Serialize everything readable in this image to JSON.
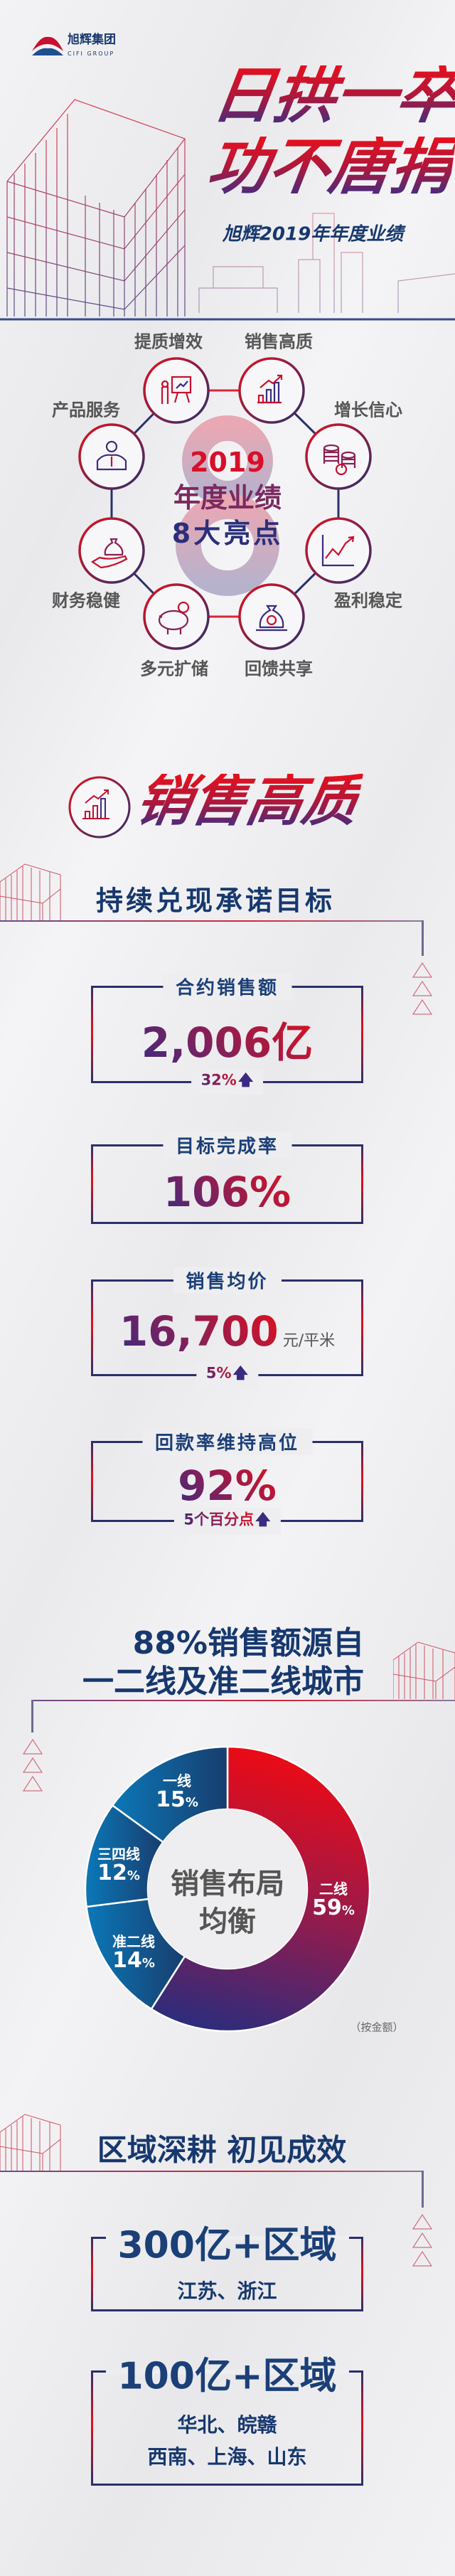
{
  "header": {
    "logo_cn": "旭辉集团",
    "logo_en": "CIFI GROUP",
    "title_line1": "日拱一卒",
    "title_line2": "功不唐捐",
    "subtitle": "旭辉2019年年度业绩"
  },
  "highlights": {
    "watermark": "8",
    "center_year": "2019",
    "center_line2": "年度业绩",
    "center_line3": "8大亮点",
    "items": [
      {
        "label": "提质增效",
        "icon": "presentation-chart-icon"
      },
      {
        "label": "销售高质",
        "icon": "bar-chart-growth-icon"
      },
      {
        "label": "增长信心",
        "icon": "coin-stacks-icon"
      },
      {
        "label": "盈利稳定",
        "icon": "line-chart-up-icon"
      },
      {
        "label": "回馈共享",
        "icon": "money-bag-icon"
      },
      {
        "label": "多元扩储",
        "icon": "piggy-bank-icon"
      },
      {
        "label": "财务稳健",
        "icon": "hand-money-bag-icon"
      },
      {
        "label": "产品服务",
        "icon": "businessman-icon"
      }
    ]
  },
  "sales": {
    "section_title": "销售高质",
    "subtitle": "持续兑现承诺目标",
    "cards": [
      {
        "label": "合约销售额",
        "value": "2,006亿",
        "change": "32%"
      },
      {
        "label": "目标完成率",
        "value": "106%"
      },
      {
        "label": "销售均价",
        "value": "16,700",
        "unit": "元/平米",
        "change": "5%"
      },
      {
        "label": "回款率维持高位",
        "value": "92%",
        "change": "5个百分点"
      }
    ]
  },
  "distribution": {
    "title_line1": "88%销售额源自",
    "title_line2": "一二线及准二线城市",
    "center_line1": "销售布局",
    "center_line2": "均衡",
    "note": "（按金额）"
  },
  "chart_data": {
    "type": "pie",
    "variant": "donut",
    "unit": "%",
    "series": [
      {
        "name": "二线",
        "value": 59,
        "color": "#d7102a"
      },
      {
        "name": "准二线",
        "value": 14,
        "color": "#0f5c99"
      },
      {
        "name": "三四线",
        "value": 12,
        "color": "#0f5c99"
      },
      {
        "name": "一线",
        "value": 15,
        "color": "#0f5c99"
      }
    ]
  },
  "regions": {
    "title": "区域深耕 初见成效",
    "cards": [
      {
        "value": "300亿+区域",
        "lines": [
          "江苏、浙江"
        ]
      },
      {
        "value": "100亿+区域",
        "lines": [
          "华北、皖赣",
          "西南、上海、山东"
        ]
      }
    ]
  },
  "colors": {
    "red": "#e3101e",
    "navy": "#17386e",
    "purple": "#3b2a80"
  }
}
